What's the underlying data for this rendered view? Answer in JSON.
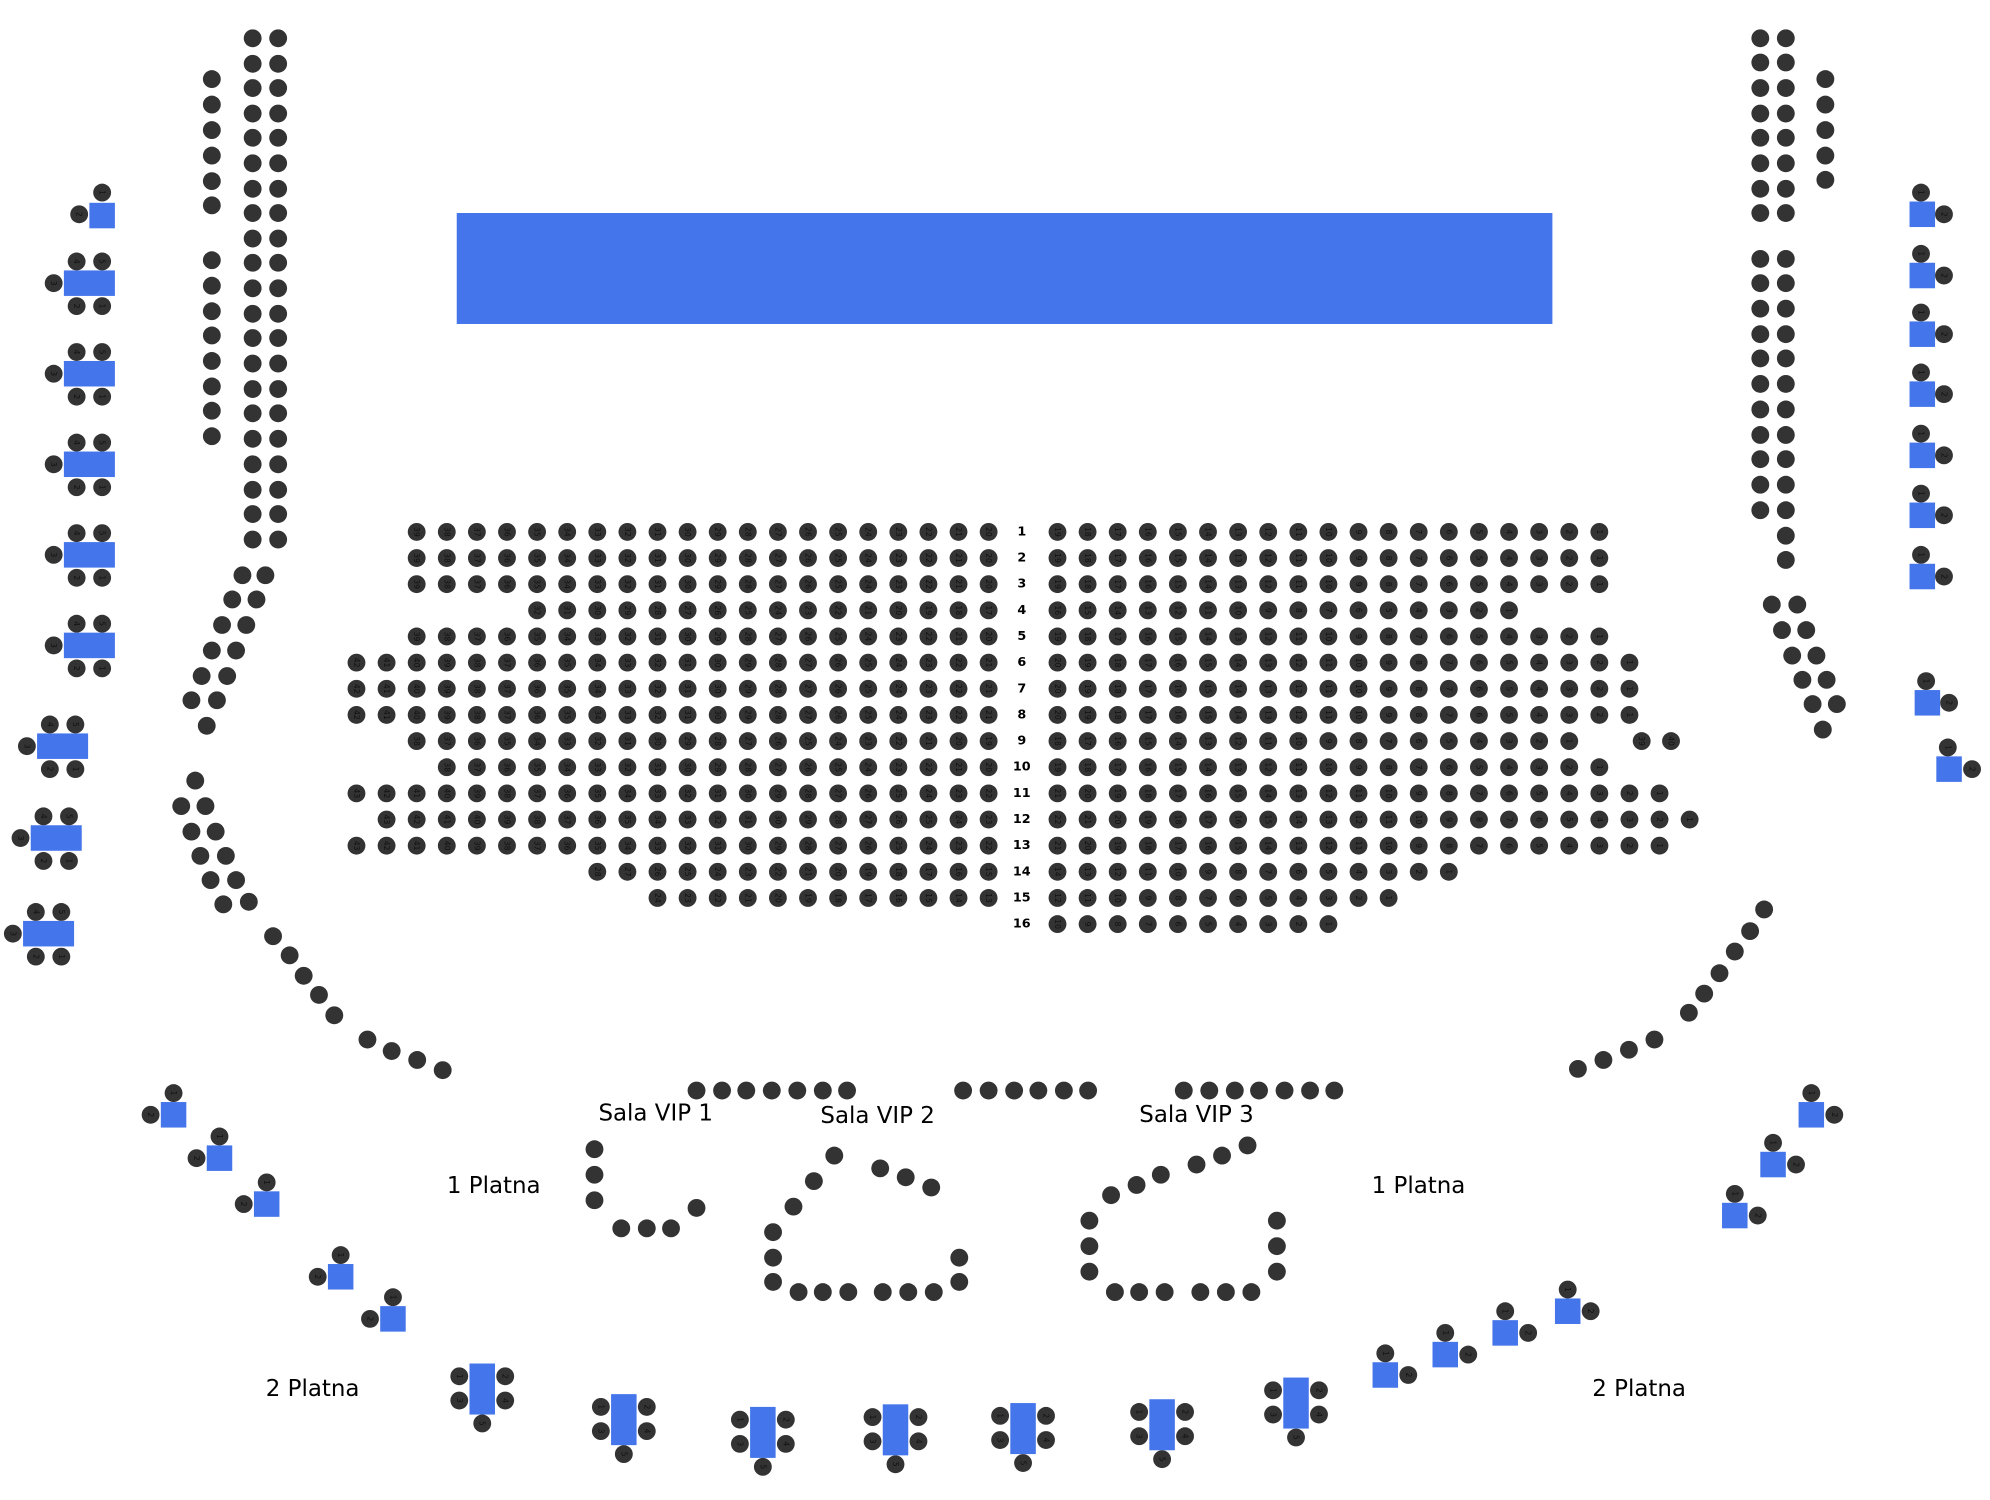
{
  "colors": {
    "stage": "#4475EB",
    "table": "#4475EB",
    "seat": "#333333"
  },
  "stage": {
    "label": ""
  },
  "rows": [
    {
      "label": "1",
      "left": 20,
      "right": 19
    },
    {
      "label": "2",
      "left": 20,
      "right": 19
    },
    {
      "label": "3",
      "left": 20,
      "right": 19
    },
    {
      "label": "4",
      "left": 16,
      "right": 16
    },
    {
      "label": "5",
      "left": 20,
      "right": 19
    },
    {
      "label": "6",
      "left": 22,
      "right": 20
    },
    {
      "label": "7",
      "left": 22,
      "right": 20
    },
    {
      "label": "8",
      "left": 22,
      "right": 20
    },
    {
      "label": "9",
      "left": 20,
      "right": 18,
      "extra": 2
    },
    {
      "label": "10",
      "left": 19,
      "right": 19
    },
    {
      "label": "11",
      "left": 22,
      "right": 21
    },
    {
      "label": "12",
      "left": 21,
      "right": 22
    },
    {
      "label": "13",
      "left": 22,
      "right": 21
    },
    {
      "label": "14",
      "left": 14,
      "right": 14
    },
    {
      "label": "15",
      "left": 12,
      "right": 12
    },
    {
      "label": "16",
      "left": 0,
      "right": 10
    }
  ],
  "zones": {
    "vip1": "Sala VIP 1",
    "vip2": "Sala VIP 2",
    "vip3": "Sala VIP 3",
    "platna1_left": "1 Platna",
    "platna1_right": "1 Platna",
    "platna2_left": "2 Platna",
    "platna2_right": "2 Platna"
  }
}
